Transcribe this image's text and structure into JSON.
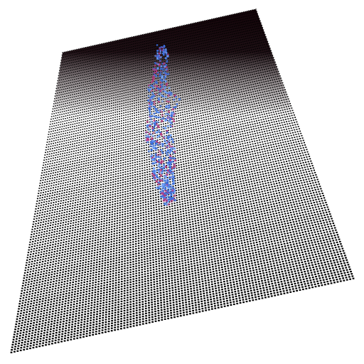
{
  "scene": {
    "subject": "pixel-dot-grid-render",
    "palette": {
      "background": "#ffffff",
      "dots": "#000000",
      "dark_region": "#120308",
      "glow_primary": "#3a6fe0",
      "glow_secondary": "#b8357a",
      "glow_highlight": "#6aa0ff"
    },
    "grid_columns": 110,
    "grid_rows": 118,
    "dark_fade_fraction": 0.32
  }
}
